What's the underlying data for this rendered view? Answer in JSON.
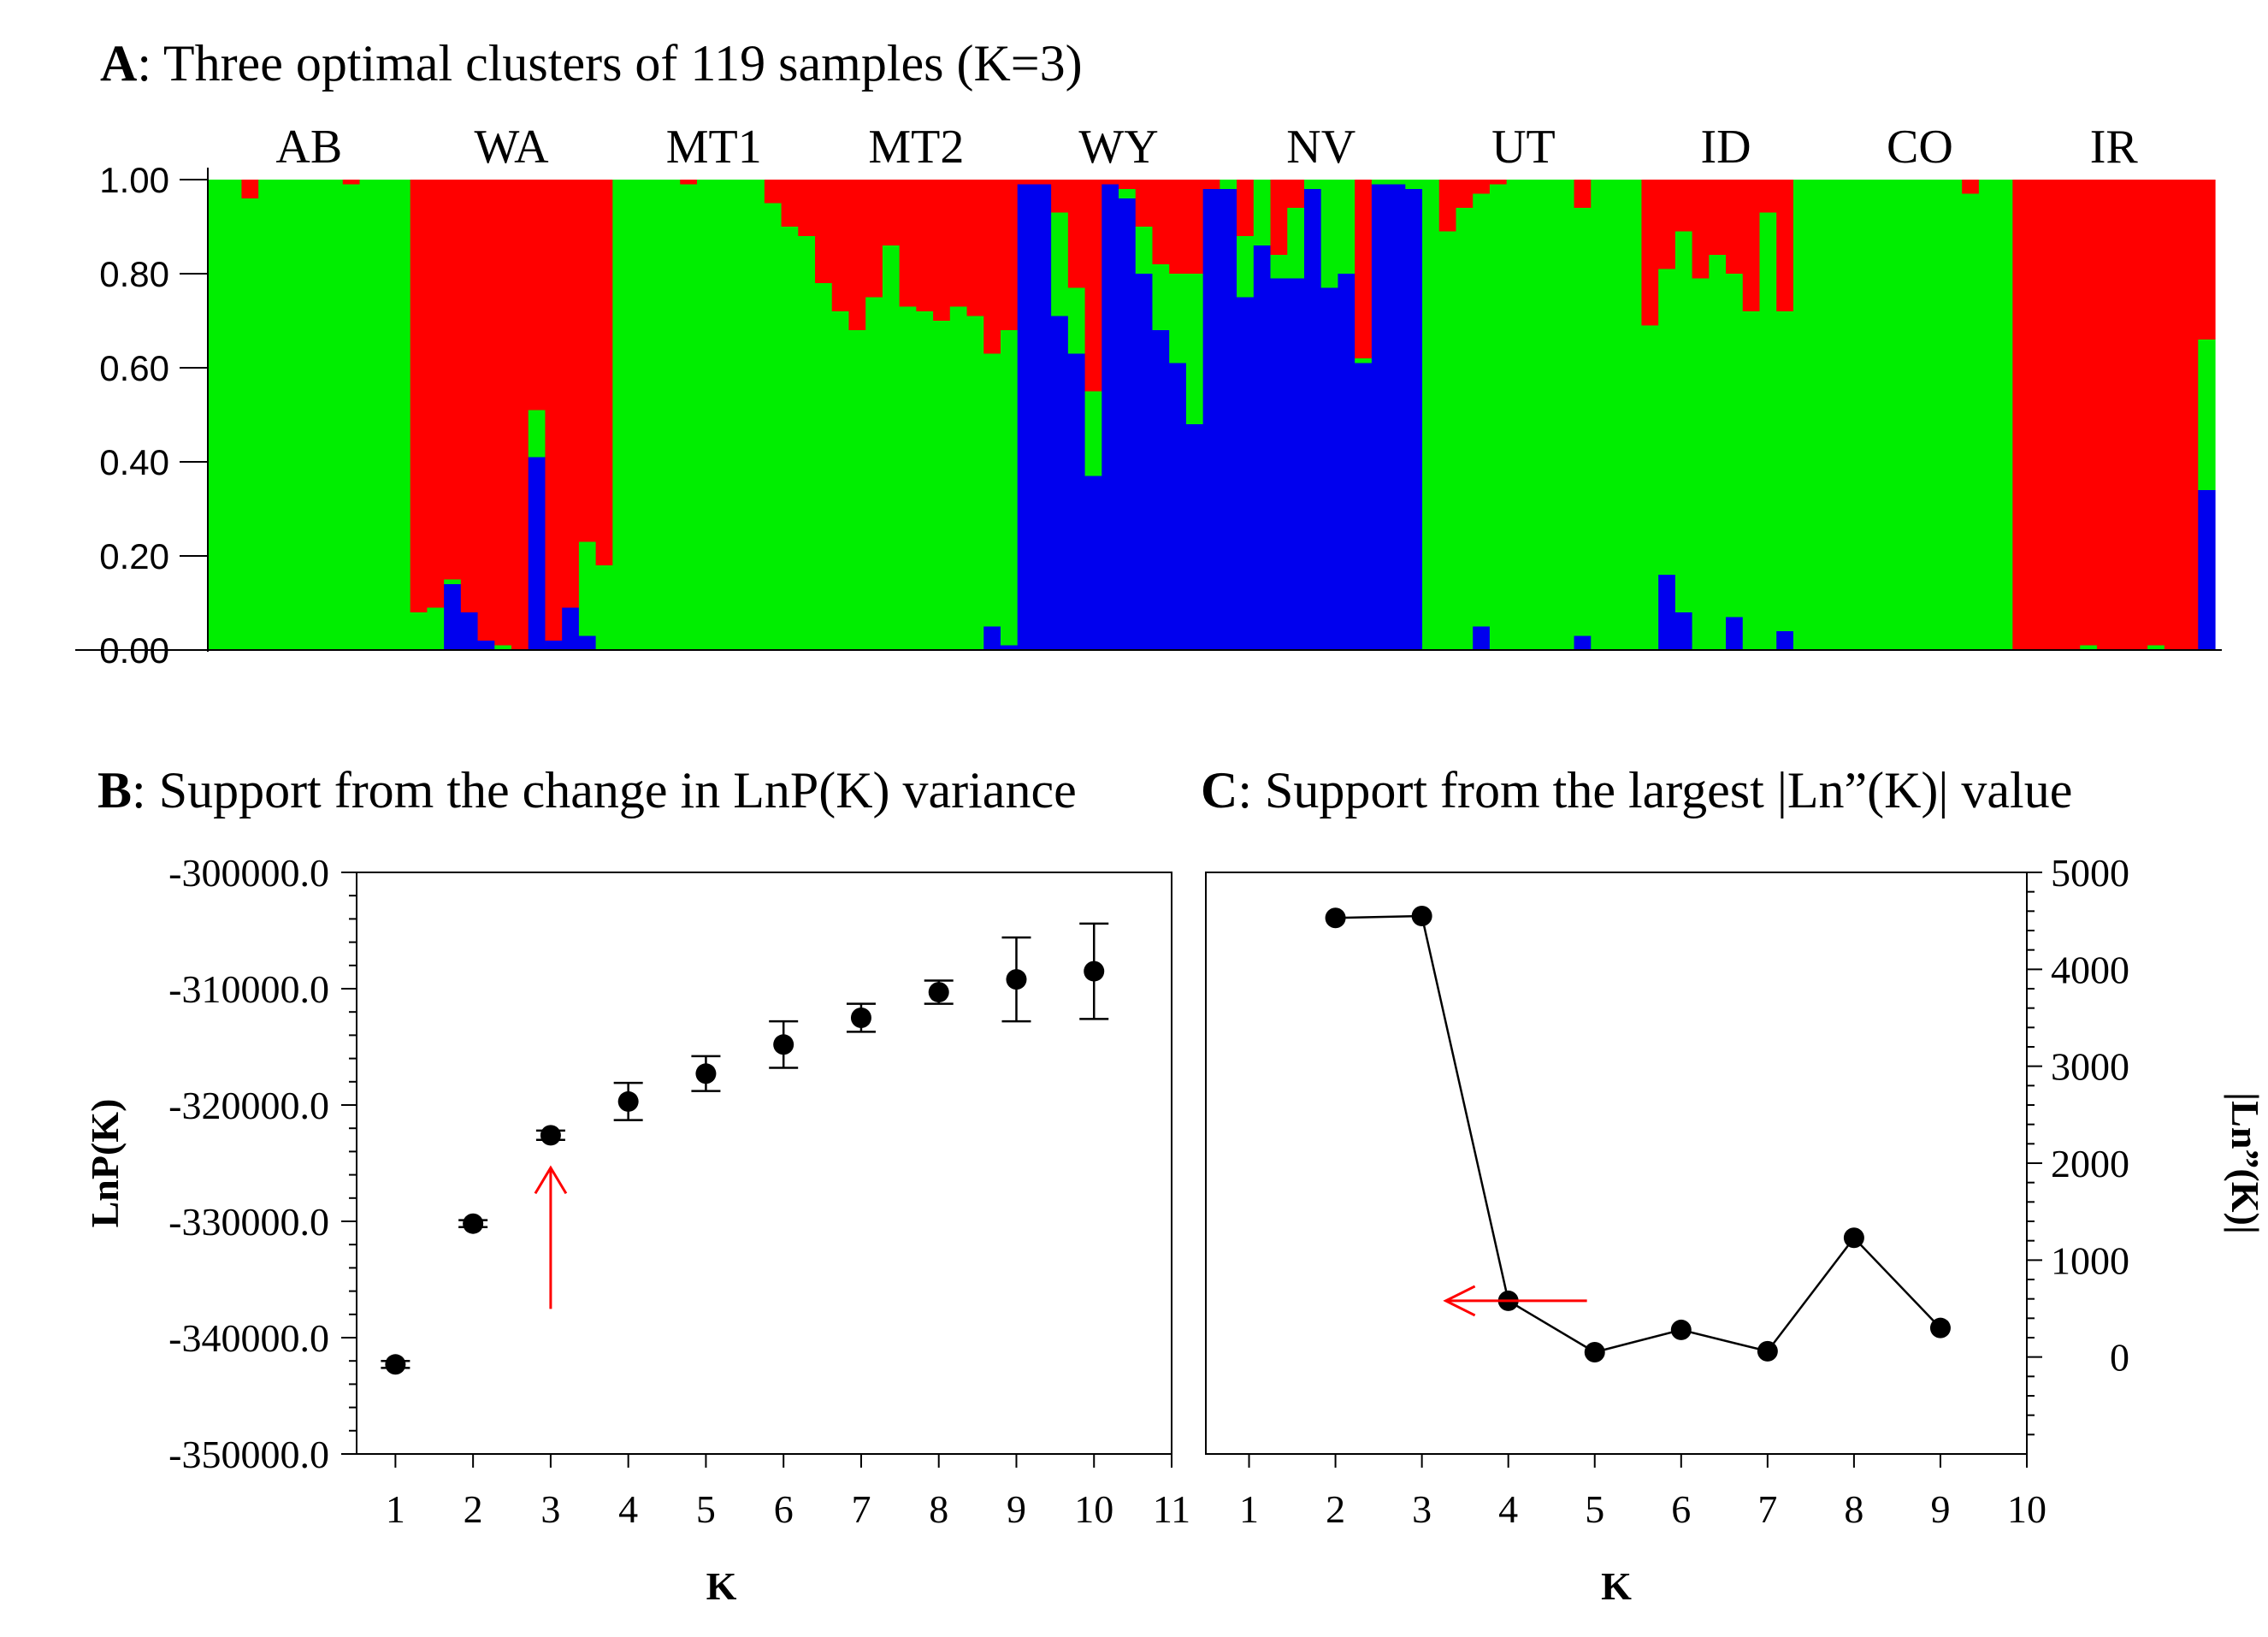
{
  "panels": {
    "a": {
      "letter": "A",
      "title": ": Three optimal clusters of 119 samples (K=3)"
    },
    "b": {
      "letter": "B",
      "title": ": Support from the change in LnP(K) variance"
    },
    "c": {
      "letter": "C",
      "title": ": Support from the largest |Ln”(K)| value"
    }
  },
  "chart_data": [
    {
      "type": "stacked-bar",
      "title": "Three optimal clusters of 119 samples (K=3)",
      "ylim": [
        0,
        1
      ],
      "yticks": [
        "1.00",
        "0.80",
        "0.60",
        "0.40",
        "0.20",
        "0.00"
      ],
      "colors": {
        "cluster1": "#ff0000",
        "cluster2": "#00ee00",
        "cluster3": "#0000ee"
      },
      "populations": [
        {
          "name": "AB",
          "n": 12
        },
        {
          "name": "WA",
          "n": 12
        },
        {
          "name": "MT1",
          "n": 12
        },
        {
          "name": "MT2",
          "n": 12
        },
        {
          "name": "WY",
          "n": 12
        },
        {
          "name": "NV",
          "n": 12
        },
        {
          "name": "UT",
          "n": 12
        },
        {
          "name": "ID",
          "n": 12
        },
        {
          "name": "CO",
          "n": 11
        },
        {
          "name": "IR",
          "n": 12
        }
      ],
      "samples": [
        [
          0.0,
          0.0
        ],
        [
          0.0,
          0.0
        ],
        [
          0.0,
          0.04
        ],
        [
          0.0,
          0.0
        ],
        [
          0.0,
          0.0
        ],
        [
          0.0,
          0.0
        ],
        [
          0.0,
          0.0
        ],
        [
          0.0,
          0.0
        ],
        [
          0.0,
          0.01
        ],
        [
          0.0,
          0.0
        ],
        [
          0.0,
          0.0
        ],
        [
          0.0,
          0.0
        ],
        [
          0.0,
          0.92
        ],
        [
          0.0,
          0.91
        ],
        [
          0.14,
          0.85
        ],
        [
          0.08,
          0.92
        ],
        [
          0.02,
          0.98
        ],
        [
          0.0,
          0.99
        ],
        [
          0.0,
          1.0
        ],
        [
          0.41,
          0.49
        ],
        [
          0.02,
          0.99
        ],
        [
          0.09,
          0.91
        ],
        [
          0.03,
          0.77
        ],
        [
          0.0,
          0.82
        ],
        [
          0.0,
          0.0
        ],
        [
          0.0,
          0.0
        ],
        [
          0.0,
          0.0
        ],
        [
          0.0,
          0.0
        ],
        [
          0.0,
          0.01
        ],
        [
          0.0,
          0.0
        ],
        [
          0.0,
          0.0
        ],
        [
          0.0,
          0.0
        ],
        [
          0.0,
          0.0
        ],
        [
          0.0,
          0.05
        ],
        [
          0.0,
          0.1
        ],
        [
          0.0,
          0.12
        ],
        [
          0.0,
          0.22
        ],
        [
          0.0,
          0.28
        ],
        [
          0.0,
          0.32
        ],
        [
          0.0,
          0.25
        ],
        [
          0.0,
          0.14
        ],
        [
          0.0,
          0.27
        ],
        [
          0.0,
          0.28
        ],
        [
          0.0,
          0.3
        ],
        [
          0.0,
          0.27
        ],
        [
          0.0,
          0.29
        ],
        [
          0.05,
          0.37
        ],
        [
          0.01,
          0.32
        ],
        [
          0.99,
          0.01
        ],
        [
          0.99,
          0.01
        ],
        [
          0.71,
          0.07
        ],
        [
          0.63,
          0.23
        ],
        [
          0.37,
          0.45
        ],
        [
          0.99,
          0.01
        ],
        [
          0.96,
          0.02
        ],
        [
          0.8,
          0.1
        ],
        [
          0.68,
          0.18
        ],
        [
          0.61,
          0.2
        ],
        [
          0.48,
          0.2
        ],
        [
          0.98,
          0.02
        ],
        [
          0.98,
          0.0
        ],
        [
          0.75,
          0.12
        ],
        [
          0.86,
          0.0
        ],
        [
          0.79,
          0.16
        ],
        [
          0.79,
          0.06
        ],
        [
          0.98,
          0.0
        ],
        [
          0.77,
          0.0
        ],
        [
          0.8,
          0.0
        ],
        [
          0.61,
          0.38
        ],
        [
          0.99,
          0.0
        ],
        [
          0.99,
          0.0
        ],
        [
          0.98,
          0.0
        ],
        [
          0.0,
          0.0
        ],
        [
          0.0,
          0.11
        ],
        [
          0.0,
          0.06
        ],
        [
          0.05,
          0.03
        ],
        [
          0.0,
          0.01
        ],
        [
          0.0,
          0.0
        ],
        [
          0.0,
          0.0
        ],
        [
          0.0,
          0.0
        ],
        [
          0.0,
          0.0
        ],
        [
          0.03,
          0.06
        ],
        [
          0.0,
          0.0
        ],
        [
          0.0,
          0.0
        ],
        [
          0.0,
          0.0
        ],
        [
          0.0,
          0.31
        ],
        [
          0.16,
          0.19
        ],
        [
          0.08,
          0.11
        ],
        [
          0.0,
          0.21
        ],
        [
          0.0,
          0.16
        ],
        [
          0.07,
          0.2
        ],
        [
          0.0,
          0.28
        ],
        [
          0.0,
          0.07
        ],
        [
          0.04,
          0.28
        ],
        [
          0.0,
          0.0
        ],
        [
          0.0,
          0.0
        ],
        [
          0.0,
          0.0
        ],
        [
          0.0,
          0.0
        ],
        [
          0.0,
          0.0
        ],
        [
          0.0,
          0.0
        ],
        [
          0.0,
          0.0
        ],
        [
          0.0,
          0.0
        ],
        [
          0.0,
          0.0
        ],
        [
          0.0,
          0.0
        ],
        [
          0.0,
          0.03
        ],
        [
          0.0,
          0.0
        ],
        [
          0.0,
          0.0
        ],
        [
          0.0,
          1.0
        ],
        [
          0.0,
          1.0
        ],
        [
          0.0,
          1.0
        ],
        [
          0.0,
          1.0
        ],
        [
          0.0,
          0.99
        ],
        [
          0.0,
          1.0
        ],
        [
          0.0,
          1.0
        ],
        [
          0.0,
          1.0
        ],
        [
          0.0,
          0.99
        ],
        [
          0.0,
          1.0
        ],
        [
          0.0,
          1.0
        ],
        [
          0.34,
          0.34
        ]
      ],
      "sample_format": "[cluster3 (blue) proportion from bottom, cluster1 (red) proportion from top; remainder is cluster2 (green)]"
    },
    {
      "type": "scatter",
      "title": "Support from the change in LnP(K) variance",
      "xlabel": "K",
      "ylabel": "LnP(K)",
      "xlim": [
        0.5,
        11
      ],
      "ylim": [
        -350000,
        -300000
      ],
      "xticks": [
        "1",
        "2",
        "3",
        "4",
        "5",
        "6",
        "7",
        "8",
        "9",
        "10",
        "11"
      ],
      "yticks": [
        "-300000.0",
        "-310000.0",
        "-320000.0",
        "-330000.0",
        "-340000.0",
        "-350000.0"
      ],
      "x": [
        1,
        2,
        3,
        4,
        5,
        6,
        7,
        8,
        9,
        10
      ],
      "y": [
        -342300,
        -330200,
        -322600,
        -319700,
        -317300,
        -314800,
        -312500,
        -310300,
        -309200,
        -308500
      ],
      "err": [
        300,
        300,
        400,
        1600,
        1500,
        2000,
        1200,
        1000,
        3600,
        4100
      ],
      "arrow_at_k": 3
    },
    {
      "type": "line",
      "title": "Support from the largest |Ln”(K)| value",
      "xlabel": "K",
      "ylabel": "|Ln”(K)|",
      "xlim": [
        0.5,
        10
      ],
      "ylim": [
        -1000,
        5000
      ],
      "xticks": [
        "1",
        "2",
        "3",
        "4",
        "5",
        "6",
        "7",
        "8",
        "9",
        "10"
      ],
      "yticks": [
        "5000",
        "4000",
        "3000",
        "2000",
        "1000",
        "0"
      ],
      "x": [
        2,
        3,
        4,
        5,
        6,
        7,
        8,
        9
      ],
      "y": [
        4530,
        4550,
        580,
        50,
        280,
        60,
        1230,
        300
      ],
      "arrow_at_k": 3
    }
  ]
}
